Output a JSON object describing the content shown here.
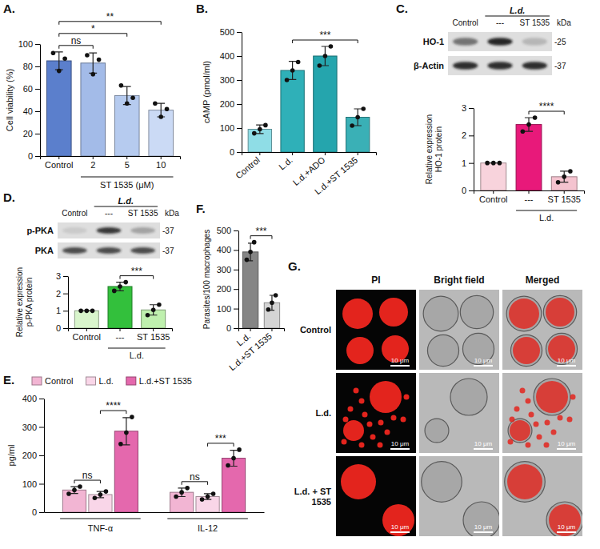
{
  "chart_data": [
    {
      "label": "A.",
      "type": "bar",
      "ylabel": "Cell viability (%)",
      "categories": [
        "Control",
        "2",
        "5",
        "10"
      ],
      "values": [
        85,
        83,
        54,
        41
      ],
      "errors": [
        8,
        9,
        8,
        6
      ],
      "points": [
        [
          92,
          76,
          87
        ],
        [
          90,
          73,
          86
        ],
        [
          63,
          47,
          52
        ],
        [
          47,
          35,
          42
        ]
      ],
      "colors": [
        "#5b7fcc",
        "#a3bbe8",
        "#b6cbef",
        "#cbdaf5"
      ],
      "ylim": [
        0,
        100
      ],
      "yticks": [
        0,
        20,
        40,
        60,
        80,
        100
      ],
      "group_label": {
        "text": "ST 1535 (μM)",
        "categories": [
          1,
          3
        ]
      },
      "annotations": [
        {
          "text": "ns",
          "between": [
            0,
            1
          ]
        },
        {
          "text": "*",
          "between": [
            0,
            2
          ]
        },
        {
          "text": "**",
          "between": [
            0,
            3
          ]
        }
      ]
    },
    {
      "label": "B.",
      "type": "bar",
      "ylabel": "cAMP (pmol/ml)",
      "categories": [
        "Control",
        "L.d.",
        "L.d.+ADO",
        "L.d.+ST 1535"
      ],
      "values": [
        95,
        340,
        400,
        145
      ],
      "errors": [
        18,
        38,
        40,
        35
      ],
      "points": [
        [
          78,
          95,
          112
        ],
        [
          300,
          340,
          375
        ],
        [
          360,
          400,
          440
        ],
        [
          110,
          145,
          180
        ]
      ],
      "colors": [
        "#8fdde6",
        "#2fb0b8",
        "#25a5ad",
        "#3ab0b6"
      ],
      "ylim": [
        0,
        500
      ],
      "yticks": [
        0,
        100,
        200,
        300,
        400,
        500
      ],
      "annotations": [
        {
          "text": "***",
          "between": [
            1,
            3
          ]
        }
      ]
    },
    {
      "label": "C.",
      "type": "bar",
      "ylabel": [
        "Relative expression",
        "HO-1 protein"
      ],
      "categories": [
        "Control",
        "---",
        "ST 1535"
      ],
      "values": [
        1,
        2.4,
        0.5
      ],
      "errors": [
        0,
        0.25,
        0.2
      ],
      "points": [
        [
          1,
          1,
          1
        ],
        [
          2.15,
          2.4,
          2.65
        ],
        [
          0.3,
          0.5,
          0.7
        ]
      ],
      "colors": [
        "#f8d3dc",
        "#e8197a",
        "#f4c3cf"
      ],
      "ylim": [
        0,
        3
      ],
      "yticks": [
        0,
        1,
        2,
        3
      ],
      "group_label": {
        "text": "L.d.",
        "categories": [
          1,
          2
        ]
      },
      "annotations": [
        {
          "text": "****",
          "between": [
            1,
            2
          ]
        }
      ],
      "blot": {
        "lanes": [
          "Control",
          "---",
          "ST 1535"
        ],
        "group_label": {
          "text": "L.d.",
          "lanes": [
            1,
            2
          ]
        },
        "unit": "kDa",
        "rows": [
          {
            "name": "HO-1",
            "size_label": "-25"
          },
          {
            "name": "β-Actin",
            "size_label": "-37"
          }
        ]
      }
    },
    {
      "label": "D.",
      "type": "bar",
      "ylabel": [
        "Relative expression",
        "p-PKA protein"
      ],
      "categories": [
        "Control",
        "---",
        "ST 1535"
      ],
      "values": [
        1,
        2.4,
        1.05
      ],
      "errors": [
        0,
        0.25,
        0.3
      ],
      "points": [
        [
          1,
          1,
          1
        ],
        [
          2.15,
          2.4,
          2.65
        ],
        [
          0.75,
          1.05,
          1.35
        ]
      ],
      "colors": [
        "#d9f5cc",
        "#33c03c",
        "#bff0ae"
      ],
      "ylim": [
        0,
        3
      ],
      "yticks": [
        0,
        1,
        2,
        3
      ],
      "group_label": {
        "text": "L.d.",
        "categories": [
          1,
          2
        ]
      },
      "annotations": [
        {
          "text": "***",
          "between": [
            1,
            2
          ]
        }
      ],
      "blot": {
        "lanes": [
          "Control",
          "---",
          "ST 1535"
        ],
        "group_label": {
          "text": "L.d.",
          "lanes": [
            1,
            2
          ]
        },
        "unit": "kDa",
        "rows": [
          {
            "name": "p-PKA",
            "size_label": "-37"
          },
          {
            "name": "PKA",
            "size_label": "-37"
          }
        ]
      }
    },
    {
      "label": "E.",
      "type": "bar",
      "ylabel": "pg/ml",
      "categories": [
        "TNF-α",
        "IL-12"
      ],
      "series": [
        {
          "name": "Control",
          "color": "#f2b5d3",
          "values": [
            78,
            70
          ],
          "errors": [
            12,
            15
          ],
          "points": [
            [
              65,
              78,
              90
            ],
            [
              55,
              70,
              85
            ]
          ]
        },
        {
          "name": "L.d.",
          "color": "#f9d6e8",
          "values": [
            62,
            55
          ],
          "errors": [
            11,
            10
          ],
          "points": [
            [
              50,
              62,
              73
            ],
            [
              45,
              55,
              65
            ]
          ]
        },
        {
          "name": "L.d.+ST 1535",
          "color": "#e468ad",
          "values": [
            285,
            190
          ],
          "errors": [
            48,
            28
          ],
          "points": [
            [
              240,
              280,
              335
            ],
            [
              165,
              190,
              220
            ]
          ]
        }
      ],
      "ylim": [
        0,
        400
      ],
      "yticks": [
        0,
        100,
        200,
        300,
        400
      ],
      "legend": "top",
      "annotations": [
        {
          "text": "ns",
          "category": 0,
          "between": [
            0,
            1
          ]
        },
        {
          "text": "****",
          "category": 0,
          "between": [
            1,
            2
          ]
        },
        {
          "text": "ns",
          "category": 1,
          "between": [
            0,
            1
          ]
        },
        {
          "text": "***",
          "category": 1,
          "between": [
            1,
            2
          ]
        }
      ]
    },
    {
      "label": "F.",
      "type": "bar",
      "ylabel": "Parasites/100 macrophages",
      "categories": [
        "L.d.",
        "L.d.+ST 1535"
      ],
      "values": [
        390,
        130
      ],
      "errors": [
        45,
        38
      ],
      "points": [
        [
          350,
          390,
          440
        ],
        [
          95,
          130,
          168
        ]
      ],
      "colors": [
        "#858585",
        "#d4d4d4"
      ],
      "ylim": [
        0,
        500
      ],
      "yticks": [
        0,
        100,
        200,
        300,
        400,
        500
      ],
      "annotations": [
        {
          "text": "***",
          "between": [
            0,
            1
          ]
        }
      ]
    }
  ],
  "microscopy": {
    "label": "G.",
    "columns": [
      "PI",
      "Bright field",
      "Merged"
    ],
    "rows": [
      "Control",
      "L.d.",
      "L.d. + ST 1535"
    ],
    "scale_bar": "10 μm"
  }
}
